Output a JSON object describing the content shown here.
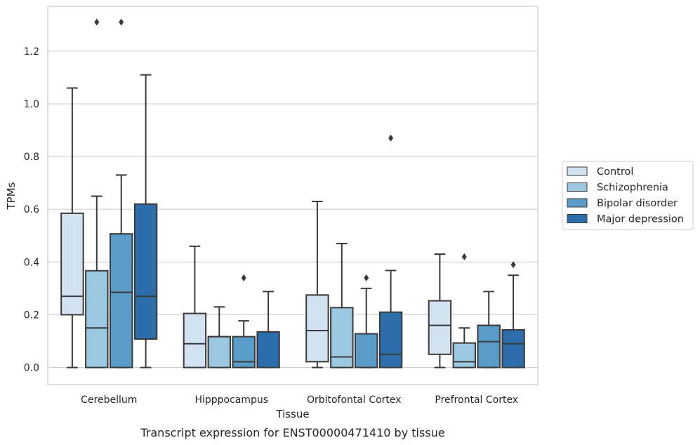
{
  "caption": "Transcript expression for ENST00000471410 by tissue",
  "chart_data": {
    "type": "boxplot",
    "xlabel": "Tissue",
    "ylabel": "TPMs",
    "ylim": [
      -0.065,
      1.37
    ],
    "yticks": [
      0.0,
      0.2,
      0.4,
      0.6,
      0.8,
      1.0,
      1.2
    ],
    "ytick_labels": [
      "0.0",
      "0.2",
      "0.4",
      "0.6",
      "0.8",
      "1.0",
      "1.2"
    ],
    "grid": "horizontal",
    "legend_position": "right",
    "categories": [
      "Cerebellum",
      "Hipppocampus",
      "Orbitofontal Cortex",
      "Prefrontal Cortex"
    ],
    "series": [
      {
        "name": "Control",
        "color": "#d2e2f1",
        "boxes": [
          {
            "whislo": 0.0,
            "q1": 0.2,
            "med": 0.27,
            "q3": 0.585,
            "whishi": 1.06,
            "fliers": []
          },
          {
            "whislo": 0.0,
            "q1": 0.0,
            "med": 0.09,
            "q3": 0.205,
            "whishi": 0.46,
            "fliers": []
          },
          {
            "whislo": 0.0,
            "q1": 0.022,
            "med": 0.14,
            "q3": 0.275,
            "whishi": 0.63,
            "fliers": []
          },
          {
            "whislo": 0.0,
            "q1": 0.05,
            "med": 0.16,
            "q3": 0.253,
            "whishi": 0.43,
            "fliers": []
          }
        ]
      },
      {
        "name": "Schizophrenia",
        "color": "#9ac8e0",
        "boxes": [
          {
            "whislo": 0.0,
            "q1": 0.0,
            "med": 0.15,
            "q3": 0.367,
            "whishi": 0.65,
            "fliers": [
              1.31
            ]
          },
          {
            "whislo": 0.0,
            "q1": 0.0,
            "med": 0.117,
            "q3": 0.117,
            "whishi": 0.23,
            "fliers": []
          },
          {
            "whislo": 0.0,
            "q1": 0.0,
            "med": 0.04,
            "q3": 0.227,
            "whishi": 0.47,
            "fliers": []
          },
          {
            "whislo": 0.0,
            "q1": 0.0,
            "med": 0.022,
            "q3": 0.093,
            "whishi": 0.15,
            "fliers": [
              0.42
            ]
          }
        ]
      },
      {
        "name": "Bipolar disorder",
        "color": "#5a9cc8",
        "boxes": [
          {
            "whislo": 0.0,
            "q1": 0.0,
            "med": 0.285,
            "q3": 0.507,
            "whishi": 0.73,
            "fliers": [
              1.31
            ]
          },
          {
            "whislo": 0.0,
            "q1": 0.0,
            "med": 0.022,
            "q3": 0.117,
            "whishi": 0.177,
            "fliers": [
              0.34
            ]
          },
          {
            "whislo": 0.0,
            "q1": 0.0,
            "med": 0.128,
            "q3": 0.128,
            "whishi": 0.3,
            "fliers": [
              0.34
            ]
          },
          {
            "whislo": 0.0,
            "q1": 0.0,
            "med": 0.098,
            "q3": 0.16,
            "whishi": 0.288,
            "fliers": []
          }
        ]
      },
      {
        "name": "Major depression",
        "color": "#2c6eac",
        "boxes": [
          {
            "whislo": 0.0,
            "q1": 0.108,
            "med": 0.27,
            "q3": 0.62,
            "whishi": 1.11,
            "fliers": []
          },
          {
            "whislo": 0.0,
            "q1": 0.0,
            "med": 0.135,
            "q3": 0.135,
            "whishi": 0.288,
            "fliers": []
          },
          {
            "whislo": 0.0,
            "q1": 0.0,
            "med": 0.05,
            "q3": 0.21,
            "whishi": 0.368,
            "fliers": [
              0.87
            ]
          },
          {
            "whislo": 0.0,
            "q1": 0.0,
            "med": 0.09,
            "q3": 0.143,
            "whishi": 0.35,
            "fliers": [
              0.39
            ]
          }
        ]
      }
    ]
  }
}
